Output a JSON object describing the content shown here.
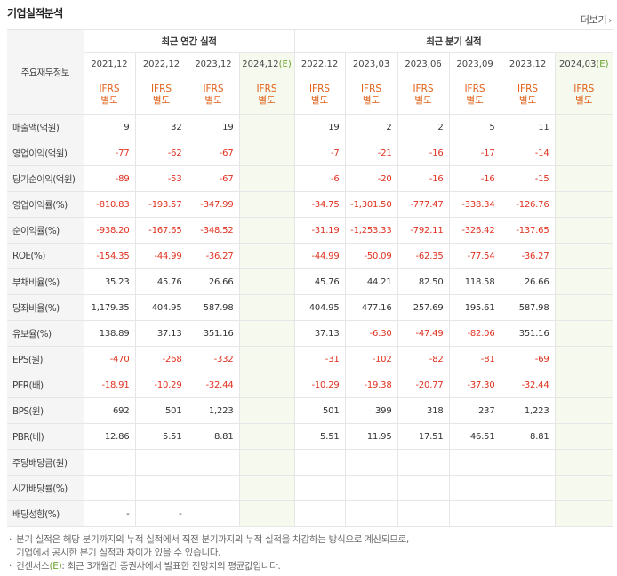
{
  "header": {
    "title": "기업실적분석",
    "more_label": "더보기",
    "more_arrow": "›"
  },
  "table": {
    "row_header_label": "주요재무정보",
    "group_annual": "최근 연간 실적",
    "group_quarter": "최근 분기 실적",
    "periods": [
      {
        "label": "2021,12",
        "est": "",
        "ifrs_top": "IFRS",
        "ifrs_bottom": "별도"
      },
      {
        "label": "2022,12",
        "est": "",
        "ifrs_top": "IFRS",
        "ifrs_bottom": "별도"
      },
      {
        "label": "2023,12",
        "est": "",
        "ifrs_top": "IFRS",
        "ifrs_bottom": "별도"
      },
      {
        "label": "2024,12",
        "est": "(E)",
        "ifrs_top": "IFRS",
        "ifrs_bottom": "별도"
      },
      {
        "label": "2022,12",
        "est": "",
        "ifrs_top": "IFRS",
        "ifrs_bottom": "별도"
      },
      {
        "label": "2023,03",
        "est": "",
        "ifrs_top": "IFRS",
        "ifrs_bottom": "별도"
      },
      {
        "label": "2023,06",
        "est": "",
        "ifrs_top": "IFRS",
        "ifrs_bottom": "별도"
      },
      {
        "label": "2023,09",
        "est": "",
        "ifrs_top": "IFRS",
        "ifrs_bottom": "별도"
      },
      {
        "label": "2023,12",
        "est": "",
        "ifrs_top": "IFRS",
        "ifrs_bottom": "별도"
      },
      {
        "label": "2024,03",
        "est": "(E)",
        "ifrs_top": "IFRS",
        "ifrs_bottom": "별도"
      }
    ],
    "groups": [
      {
        "rows": [
          {
            "label": "매출액(억원)",
            "values": [
              "9",
              "32",
              "19",
              "",
              "19",
              "2",
              "2",
              "5",
              "11",
              ""
            ]
          },
          {
            "label": "영업이익(억원)",
            "values": [
              "-77",
              "-62",
              "-67",
              "",
              "-7",
              "-21",
              "-16",
              "-17",
              "-14",
              ""
            ]
          },
          {
            "label": "당기순이익(억원)",
            "values": [
              "-89",
              "-53",
              "-67",
              "",
              "-6",
              "-20",
              "-16",
              "-16",
              "-15",
              ""
            ]
          }
        ]
      },
      {
        "rows": [
          {
            "label": "영업이익률(%)",
            "values": [
              "-810.83",
              "-193.57",
              "-347.99",
              "",
              "-34.75",
              "-1,301.50",
              "-777.47",
              "-338.34",
              "-126.76",
              ""
            ]
          },
          {
            "label": "순이익률(%)",
            "values": [
              "-938.20",
              "-167.65",
              "-348.52",
              "",
              "-31.19",
              "-1,253.33",
              "-792.11",
              "-326.42",
              "-137.65",
              ""
            ]
          },
          {
            "label": "ROE(%)",
            "values": [
              "-154.35",
              "-44.99",
              "-36.27",
              "",
              "-44.99",
              "-50.09",
              "-62.35",
              "-77.54",
              "-36.27",
              ""
            ]
          }
        ]
      },
      {
        "rows": [
          {
            "label": "부채비율(%)",
            "values": [
              "35.23",
              "45.76",
              "26.66",
              "",
              "45.76",
              "44.21",
              "82.50",
              "118.58",
              "26.66",
              ""
            ]
          },
          {
            "label": "당좌비율(%)",
            "values": [
              "1,179.35",
              "404.95",
              "587.98",
              "",
              "404.95",
              "477.16",
              "257.69",
              "195.61",
              "587.98",
              ""
            ]
          },
          {
            "label": "유보율(%)",
            "values": [
              "138.89",
              "37.13",
              "351.16",
              "",
              "37.13",
              "-6.30",
              "-47.49",
              "-82.06",
              "351.16",
              ""
            ]
          }
        ]
      },
      {
        "rows": [
          {
            "label": "EPS(원)",
            "values": [
              "-470",
              "-268",
              "-332",
              "",
              "-31",
              "-102",
              "-82",
              "-81",
              "-69",
              ""
            ]
          },
          {
            "label": "PER(배)",
            "values": [
              "-18.91",
              "-10.29",
              "-32.44",
              "",
              "-10.29",
              "-19.38",
              "-20.77",
              "-37.30",
              "-32.44",
              ""
            ]
          },
          {
            "label": "BPS(원)",
            "values": [
              "692",
              "501",
              "1,223",
              "",
              "501",
              "399",
              "318",
              "237",
              "1,223",
              ""
            ]
          },
          {
            "label": "PBR(배)",
            "values": [
              "12.86",
              "5.51",
              "8.81",
              "",
              "5.51",
              "11.95",
              "17.51",
              "46.51",
              "8.81",
              ""
            ]
          }
        ]
      },
      {
        "rows": [
          {
            "label": "주당배당금(원)",
            "values": [
              "",
              "",
              "",
              "",
              "",
              "",
              "",
              "",
              "",
              ""
            ]
          },
          {
            "label": "시가배당률(%)",
            "values": [
              "",
              "",
              "",
              "",
              "",
              "",
              "",
              "",
              "",
              ""
            ]
          },
          {
            "label": "배당성향(%)",
            "values": [
              "-",
              "-",
              "",
              "",
              "",
              "",
              "",
              "",
              "",
              ""
            ]
          }
        ]
      }
    ]
  },
  "notes": [
    {
      "text": "분기 실적은 해당 분기까지의 누적 실적에서 직전 분기까지의 누적 실적을 차감하는 방식으로 계산되므로,",
      "cont": false
    },
    {
      "text": "기업에서 공시한 분기 실적과 차이가 있을 수 있습니다.",
      "cont": true
    },
    {
      "text_pre": "컨센서스",
      "text_mark": "(E)",
      "text_post": ": 최근 3개월간 증권사에서 발표한 전망치의 평균값입니다.",
      "cont": false
    }
  ]
}
